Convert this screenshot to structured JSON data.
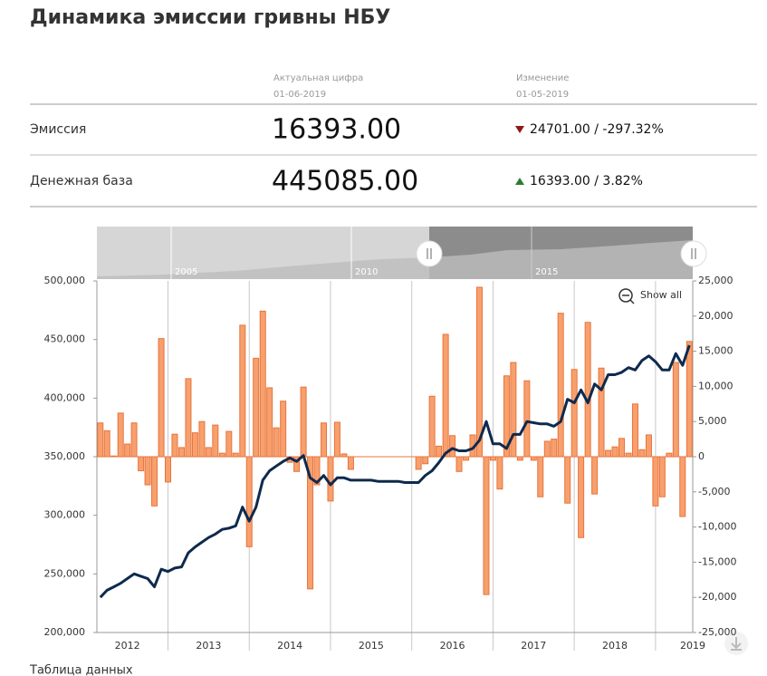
{
  "header": {
    "title": "Динамика эмиссии гривны НБУ"
  },
  "table": {
    "columns": [
      {
        "label": "Актуальная цифра",
        "date": "01-06-2019"
      },
      {
        "label": "Изменение",
        "date": "01-05-2019"
      }
    ],
    "rows": [
      {
        "name": "Эмиссия",
        "value": "16393.00",
        "change": "24701.00 / -297.32%",
        "direction": "down"
      },
      {
        "name": "Денежная база",
        "value": "445085.00",
        "change": "16393.00 / 3.82%",
        "direction": "up"
      }
    ]
  },
  "navigator_labels": [
    "2005",
    "2010",
    "2015"
  ],
  "show_all": "Show all",
  "footer": "Таблица данных",
  "chart_data": {
    "type": "combo",
    "x": [
      2012.167,
      2012.25,
      2012.333,
      2012.417,
      2012.5,
      2012.583,
      2012.667,
      2012.75,
      2012.833,
      2012.917,
      2013,
      2013.083,
      2013.167,
      2013.25,
      2013.333,
      2013.417,
      2013.5,
      2013.583,
      2013.667,
      2013.75,
      2013.833,
      2013.917,
      2014,
      2014.083,
      2014.167,
      2014.25,
      2014.333,
      2014.417,
      2014.5,
      2014.583,
      2014.667,
      2014.75,
      2014.833,
      2014.917,
      2015,
      2015.083,
      2015.167,
      2015.25,
      2015.333,
      2015.417,
      2015.5,
      2015.583,
      2015.667,
      2015.75,
      2015.833,
      2015.917,
      2016,
      2016.083,
      2016.167,
      2016.25,
      2016.333,
      2016.417,
      2016.5,
      2016.583,
      2016.667,
      2016.75,
      2016.833,
      2016.917,
      2017,
      2017.083,
      2017.167,
      2017.25,
      2017.333,
      2017.417,
      2017.5,
      2017.583,
      2017.667,
      2017.75,
      2017.833,
      2017.917,
      2018,
      2018.083,
      2018.167,
      2018.25,
      2018.333,
      2018.417,
      2018.5,
      2018.583,
      2018.667,
      2018.75,
      2018.833,
      2018.917,
      2019,
      2019.083,
      2019.167,
      2019.25,
      2019.333,
      2019.417
    ],
    "series": [
      {
        "type": "bar",
        "axis": "y2",
        "color": "#f7a06e",
        "stroke": "#e8743c",
        "values": [
          4800,
          3700,
          100,
          6200,
          1800,
          4800,
          -2000,
          -4000,
          -7000,
          16800,
          -3600,
          3200,
          1300,
          11100,
          3400,
          5000,
          1300,
          4500,
          500,
          3600,
          500,
          18700,
          -12800,
          14000,
          20700,
          9800,
          4100,
          7900,
          -800,
          -2100,
          9900,
          -18800,
          -4000,
          4800,
          -6300,
          4900,
          400,
          -1800,
          null,
          null,
          null,
          null,
          null,
          null,
          null,
          null,
          null,
          -1800,
          -1000,
          8600,
          1500,
          17400,
          3000,
          -2100,
          -500,
          3100,
          24100,
          -19600,
          -500,
          -4600,
          11500,
          13400,
          -500,
          10800,
          -500,
          -5700,
          2200,
          2500,
          20400,
          -6600,
          12400,
          -11500,
          19100,
          -5300,
          12600,
          900,
          1400,
          2600,
          500,
          7500,
          1000,
          3100,
          -7000,
          -5700,
          500,
          13400,
          -8500,
          16393
        ]
      },
      {
        "type": "line",
        "axis": "y",
        "color": "#0e2a4d",
        "values": [
          230000,
          236000,
          239000,
          242000,
          246000,
          250000,
          248000,
          246000,
          239000,
          254000,
          252000,
          255000,
          256000,
          268000,
          273000,
          277000,
          281000,
          284000,
          288000,
          289000,
          291000,
          307000,
          295000,
          307000,
          330000,
          338000,
          342000,
          346000,
          349000,
          346000,
          351000,
          332000,
          328000,
          334000,
          326000,
          332000,
          332000,
          330000,
          330000,
          330000,
          330000,
          329000,
          329000,
          329000,
          329000,
          328000,
          328000,
          328000,
          334000,
          338000,
          345000,
          353000,
          357000,
          355000,
          355000,
          357000,
          364000,
          380000,
          361000,
          361000,
          357000,
          369000,
          369000,
          380000,
          379000,
          378000,
          378000,
          376000,
          380000,
          399000,
          396000,
          407000,
          396000,
          412000,
          407000,
          420000,
          420000,
          422000,
          426000,
          424000,
          432000,
          436000,
          431000,
          424000,
          424000,
          438000,
          428000,
          445085
        ]
      }
    ],
    "xlim": [
      2012.125,
      2019.458
    ],
    "xticks": [
      2012,
      2013,
      2014,
      2015,
      2016,
      2017,
      2018,
      2019
    ],
    "ylim": [
      200000,
      500000
    ],
    "yticks": [
      {
        "value": 200000,
        "label": "200,000"
      },
      {
        "value": 250000,
        "label": "250,000"
      },
      {
        "value": 300000,
        "label": "300,000"
      },
      {
        "value": 350000,
        "label": "350,000"
      },
      {
        "value": 400000,
        "label": "400,000"
      },
      {
        "value": 450000,
        "label": "450,000"
      },
      {
        "value": 500000,
        "label": "500,000"
      }
    ],
    "y2lim": [
      -25000,
      25000
    ],
    "y2ticks": [
      {
        "value": -25000,
        "label": "-25,000"
      },
      {
        "value": -20000,
        "label": "-20,000"
      },
      {
        "value": -15000,
        "label": "-15,000"
      },
      {
        "value": -10000,
        "label": "-10,000"
      },
      {
        "value": -5000,
        "label": "-5,000"
      },
      {
        "value": 0,
        "label": "0"
      },
      {
        "value": 5000,
        "label": "5,000"
      },
      {
        "value": 10000,
        "label": "10,000"
      },
      {
        "value": 15000,
        "label": "15,000"
      },
      {
        "value": 20000,
        "label": "20,000"
      },
      {
        "value": 25000,
        "label": "25,000"
      }
    ],
    "grid": "x"
  }
}
